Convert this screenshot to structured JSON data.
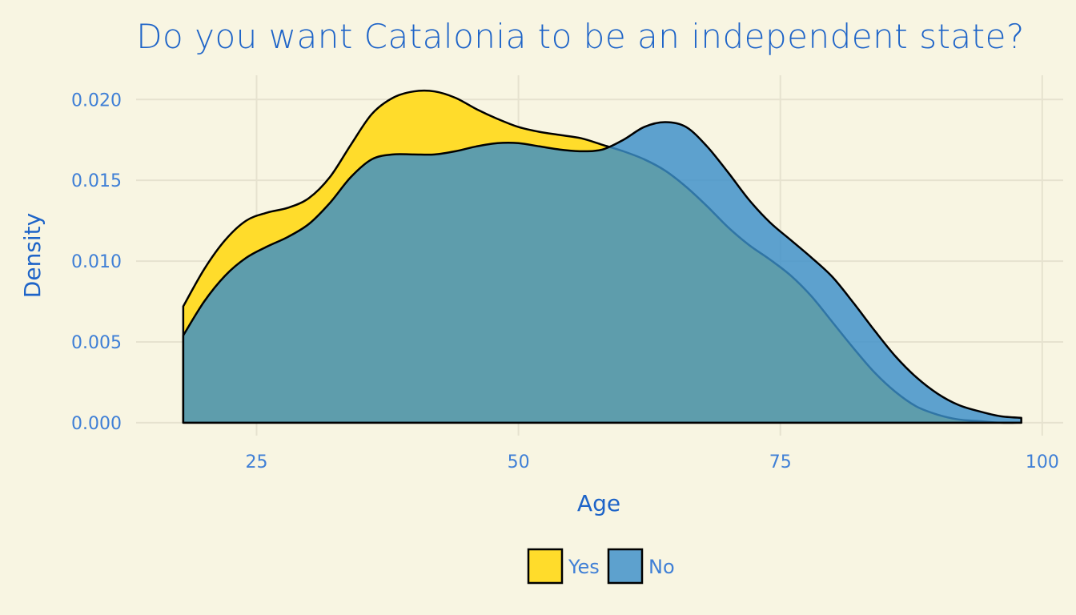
{
  "colors": {
    "background": "#f8f5e2",
    "text": "#1e64c8",
    "tick_text": "#3f7fd6",
    "grid": "#e6e2cf",
    "outline": "#000000"
  },
  "chart_data": {
    "type": "area",
    "title": "Do you want Catalonia to be an independent state?",
    "xlabel": "Age",
    "ylabel": "Density",
    "xlim": [
      13.5,
      102
    ],
    "ylim": [
      -0.0008,
      0.0215
    ],
    "x_ticks": [
      25,
      50,
      75,
      100
    ],
    "x_tick_labels": [
      "25",
      "50",
      "75",
      "100"
    ],
    "y_ticks": [
      0,
      0.005,
      0.01,
      0.015,
      0.02
    ],
    "y_tick_labels": [
      "0.000",
      "0.005",
      "0.010",
      "0.015",
      "0.020"
    ],
    "grid": true,
    "legend_position": "bottom",
    "series": [
      {
        "name": "Yes",
        "color": "#ffdc2b",
        "opacity": 1,
        "x": [
          18,
          20,
          22,
          24,
          26,
          28,
          30,
          32,
          34,
          36,
          38,
          40,
          42,
          44,
          46,
          48,
          50,
          52,
          54,
          56,
          58,
          60,
          62,
          64,
          66,
          68,
          70,
          72,
          74,
          76,
          78,
          80,
          82,
          84,
          86,
          88,
          90,
          92,
          94,
          96,
          98
        ],
        "y": [
          0.0072,
          0.0095,
          0.0113,
          0.0125,
          0.013,
          0.0133,
          0.0139,
          0.0152,
          0.0172,
          0.0191,
          0.0201,
          0.0205,
          0.0205,
          0.0201,
          0.0194,
          0.0188,
          0.0183,
          0.018,
          0.0178,
          0.0176,
          0.0172,
          0.0168,
          0.0163,
          0.0156,
          0.0146,
          0.0134,
          0.0121,
          0.011,
          0.0101,
          0.0091,
          0.0078,
          0.0062,
          0.0046,
          0.0031,
          0.0019,
          0.001,
          0.0005,
          0.0002,
          0.0001,
          0.0,
          0.0
        ]
      },
      {
        "name": "No",
        "color": "#3a8fc9",
        "opacity": 0.82,
        "x": [
          18,
          20,
          22,
          24,
          26,
          28,
          30,
          32,
          34,
          36,
          38,
          40,
          42,
          44,
          46,
          48,
          50,
          52,
          54,
          56,
          58,
          60,
          62,
          64,
          66,
          68,
          70,
          72,
          74,
          76,
          78,
          80,
          82,
          84,
          86,
          88,
          90,
          92,
          94,
          96,
          98
        ],
        "y": [
          0.0054,
          0.0075,
          0.0091,
          0.0102,
          0.0109,
          0.0115,
          0.0123,
          0.0136,
          0.0152,
          0.0163,
          0.0166,
          0.0166,
          0.0166,
          0.0168,
          0.0171,
          0.0173,
          0.0173,
          0.0171,
          0.0169,
          0.0168,
          0.0169,
          0.0175,
          0.0183,
          0.0186,
          0.0183,
          0.0171,
          0.0155,
          0.0138,
          0.0124,
          0.0113,
          0.0102,
          0.009,
          0.0074,
          0.0057,
          0.0041,
          0.0028,
          0.0018,
          0.0011,
          0.0007,
          0.0004,
          0.0003
        ]
      }
    ]
  }
}
